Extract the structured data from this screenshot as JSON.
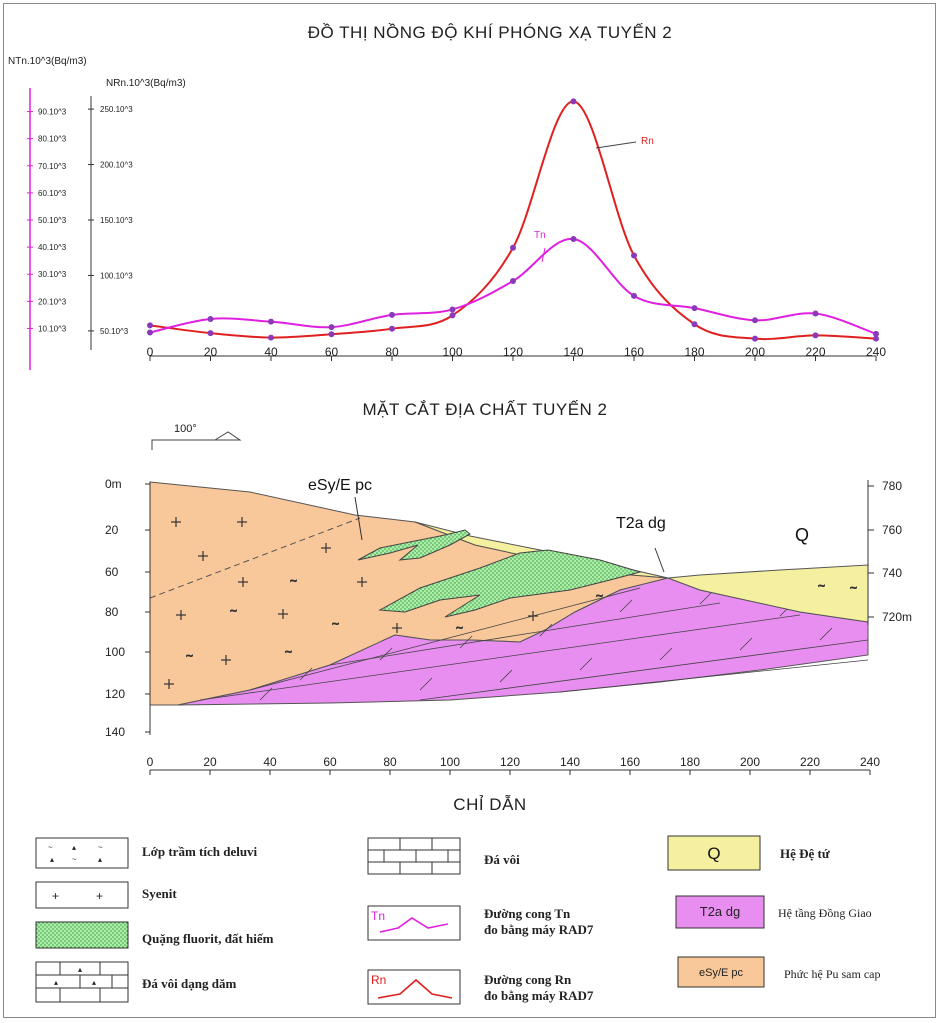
{
  "chart_data": {
    "type": "line",
    "title": "ĐỒ THỊ NỒNG ĐỘ KHÍ PHÓNG XẠ TUYẾN 2",
    "y_left_label": "NTn.10^3(Bq/m3)",
    "y_inner_label": "NRn.10^3(Bq/m3)",
    "y_left_ticks": [
      "10.10^3",
      "20.10^3",
      "30.10^3",
      "40.10^3",
      "50.10^3",
      "60.10^3",
      "70.10^3",
      "80.10^3",
      "90.10^3"
    ],
    "y_inner_ticks": [
      "50.10^3",
      "100.10^3",
      "150.10^3",
      "200.10^3",
      "250.10^3"
    ],
    "x": [
      0,
      20,
      40,
      60,
      80,
      100,
      120,
      140,
      160,
      180,
      200,
      220,
      240
    ],
    "xlim": [
      0,
      240
    ],
    "series": [
      {
        "name": "Rn",
        "color": "#e02020",
        "axis": "inner",
        "ylim": [
          40,
          260
        ],
        "values": [
          55,
          48,
          44,
          47,
          52,
          64,
          125,
          257,
          118,
          56,
          43,
          46,
          43
        ]
      },
      {
        "name": "Tn",
        "color": "#e020e0",
        "axis": "left",
        "ylim": [
          5,
          95
        ],
        "values": [
          8.5,
          13.5,
          12.5,
          10.5,
          15,
          17,
          27.5,
          43,
          22,
          17.5,
          13,
          15.5,
          8
        ]
      }
    ]
  },
  "section": {
    "title": "MẶT CẮT ĐỊA CHẤT TUYẾN 2",
    "scale_label": "100°",
    "depth_ticks": [
      "0m",
      "20",
      "60",
      "80",
      "100",
      "120",
      "140"
    ],
    "elev_ticks": [
      "780",
      "760",
      "740",
      "720m"
    ],
    "x_ticks": [
      "0",
      "20",
      "40",
      "60",
      "80",
      "100",
      "120",
      "140",
      "160",
      "180",
      "200",
      "220",
      "240"
    ],
    "labels": {
      "esy": "eSy/E pc",
      "t2a": "T2a dg",
      "q": "Q"
    }
  },
  "legend": {
    "title": "CHỈ DẪN",
    "deluvi": "Lớp trầm tích deluvi",
    "syenit": "Syenit",
    "fluorit": "Quặng fluorit, đất hiếm",
    "davoi_dam": "Đá vôi dạng dăm",
    "davoi": "Đá vôi",
    "tn_line1": "Đường cong Tn",
    "tn_line2": "đo bằng máy RAD7",
    "tn_tag": "Tn",
    "rn_line1": "Đường cong Rn",
    "rn_line2": "đo bằng máy RAD7",
    "rn_tag": "Rn",
    "q_tag": "Q",
    "q_desc": "Hệ Đệ tứ",
    "t2a_tag": "T2a dg",
    "t2a_desc": "Hệ tầng Đồng Giao",
    "esy_tag": "eSy/E pc",
    "esy_desc": "Phức hệ Pu sam cap"
  },
  "colors": {
    "rn": "#e02020",
    "tn": "#e020e0",
    "marker": "#8a3ab8",
    "syenit": "#f8c79a",
    "limestone": "#e88ef0",
    "fluorit": "#a8f0a8",
    "quaternary": "#f5f0a0"
  }
}
